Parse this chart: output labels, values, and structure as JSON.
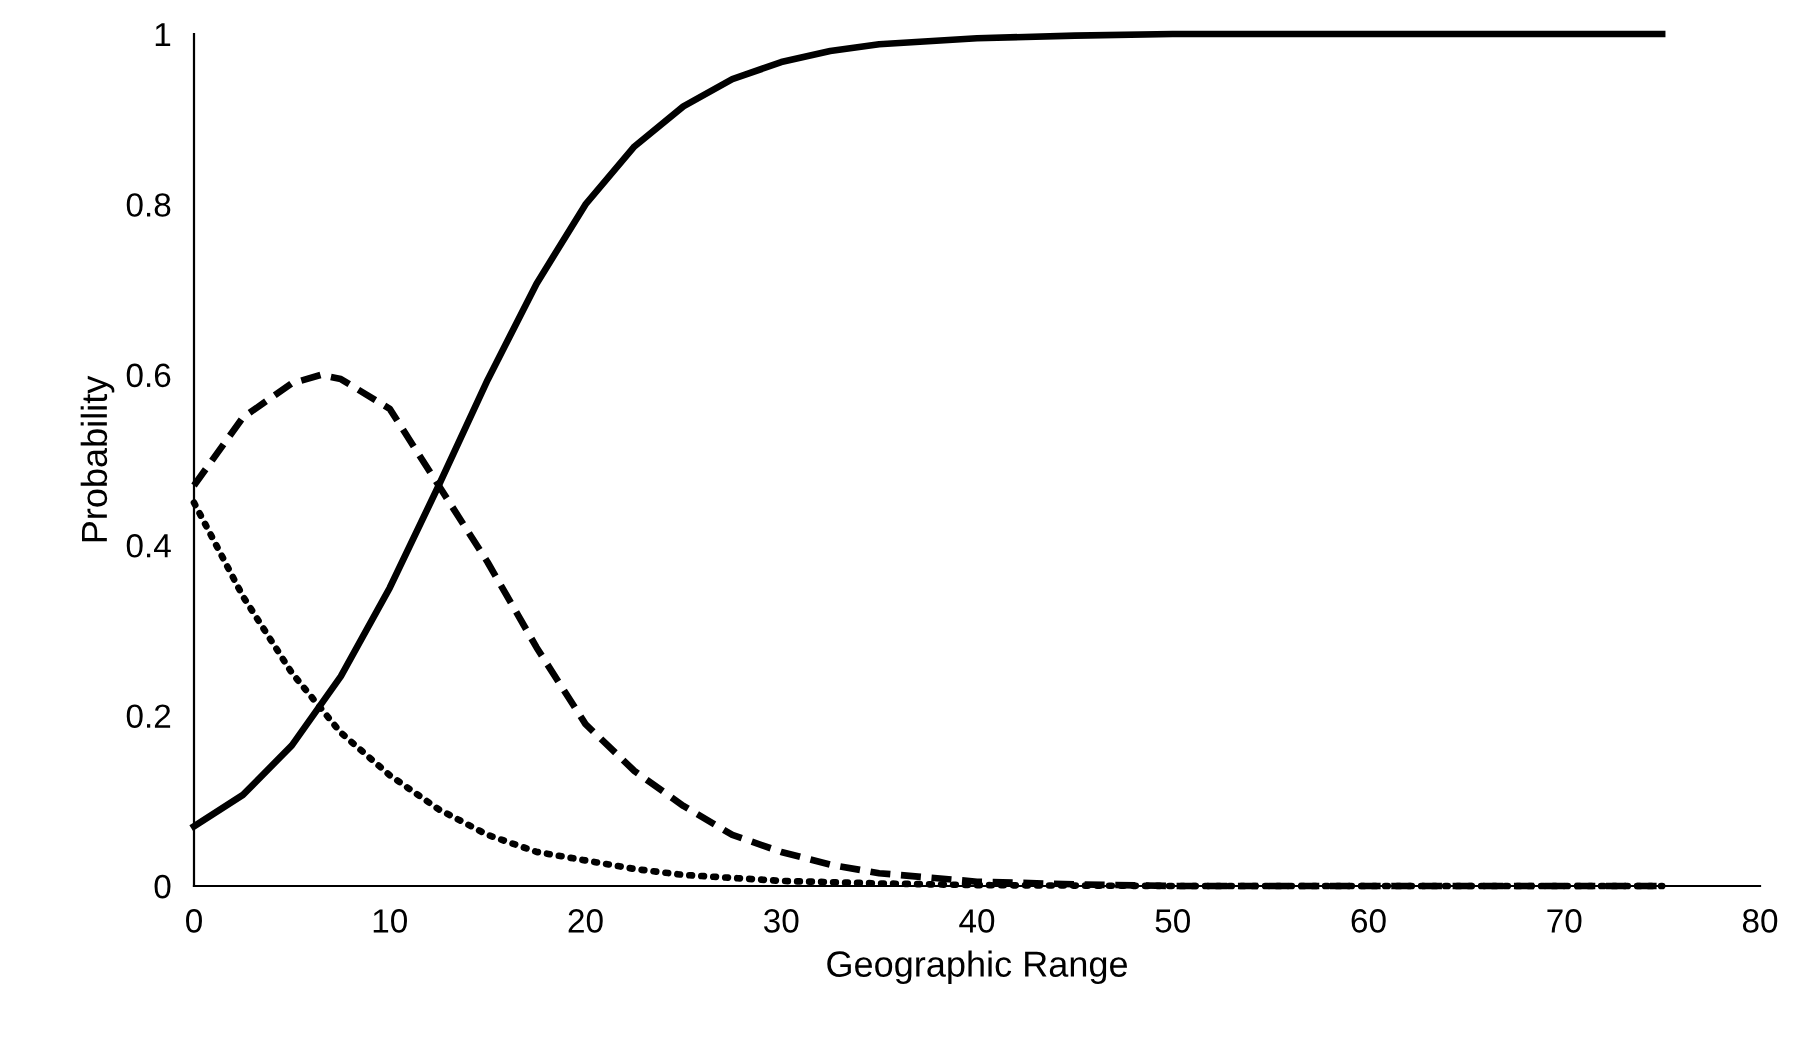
{
  "chart_data": {
    "type": "line",
    "xlabel": "Geographic Range",
    "ylabel": "Probability",
    "xlim": [
      0,
      80
    ],
    "xticks": [
      0,
      10,
      20,
      30,
      40,
      50,
      60,
      70,
      80
    ],
    "ylim": [
      0,
      1
    ],
    "yticks": [
      0,
      0.2,
      0.4,
      0.6,
      0.8,
      1
    ],
    "grid": false,
    "series": [
      {
        "color": "#000000",
        "line_style": "solid",
        "x": [
          0,
          2.5,
          5,
          7.5,
          10,
          12.5,
          15,
          17.5,
          20,
          22.5,
          25,
          27.5,
          30,
          32.5,
          35,
          40,
          45,
          50,
          60,
          75
        ],
        "values": [
          0.07,
          0.107,
          0.165,
          0.246,
          0.35,
          0.47,
          0.594,
          0.707,
          0.8,
          0.868,
          0.915,
          0.947,
          0.967,
          0.98,
          0.988,
          0.995,
          0.998,
          1,
          1,
          1
        ]
      },
      {
        "color": "#000000",
        "line_style": "dashed",
        "x": [
          0,
          2.5,
          5,
          6.5,
          7.5,
          10,
          12.5,
          15,
          17.5,
          20,
          22.5,
          25,
          27.5,
          30,
          32.5,
          35,
          40,
          45,
          50,
          60,
          75
        ],
        "values": [
          0.47,
          0.55,
          0.59,
          0.6,
          0.595,
          0.56,
          0.47,
          0.38,
          0.28,
          0.19,
          0.135,
          0.094,
          0.06,
          0.04,
          0.025,
          0.015,
          0.005,
          0.002,
          0,
          0,
          0
        ]
      },
      {
        "color": "#000000",
        "line_style": "dotted",
        "x": [
          0,
          2.5,
          5,
          7.5,
          10,
          12.5,
          15,
          17.5,
          20,
          22.5,
          25,
          30,
          35,
          40,
          50,
          60,
          75
        ],
        "values": [
          0.45,
          0.34,
          0.25,
          0.18,
          0.13,
          0.09,
          0.06,
          0.04,
          0.03,
          0.02,
          0.013,
          0.006,
          0.003,
          0.001,
          0,
          0,
          0
        ]
      }
    ]
  }
}
